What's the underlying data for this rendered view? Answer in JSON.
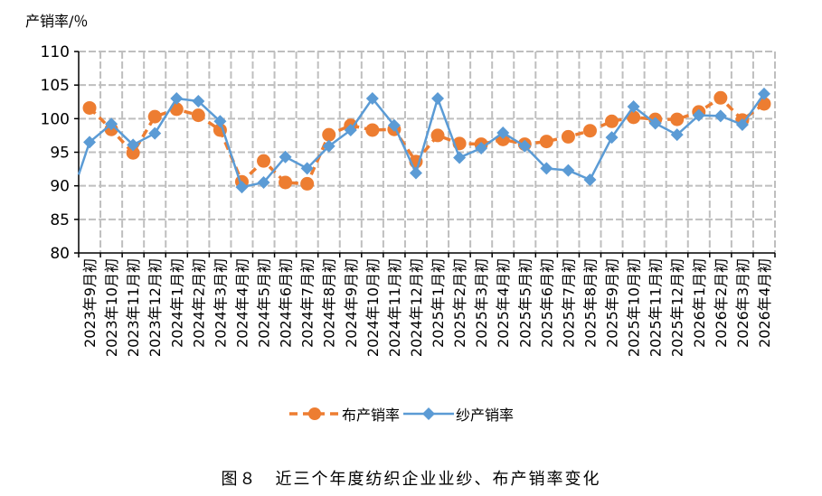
{
  "caption": "图８　近三个年度纺织企业业纱、布产销率变化",
  "chart_data": {
    "type": "line",
    "ylabel": "产销率/％",
    "ylim": [
      80,
      110
    ],
    "yticks": [
      80,
      85,
      90,
      95,
      100,
      105,
      110
    ],
    "grid": true,
    "legend_position": "bottom",
    "categories": [
      "2023年9月初",
      "2023年10月初",
      "2023年11月初",
      "2023年12月初",
      "2024年1月初",
      "2024年2月初",
      "2024年3月初",
      "2024年4月初",
      "2024年5月初",
      "2024年6月初",
      "2024年7月初",
      "2024年8月初",
      "2024年9月初",
      "2024年10月初",
      "2024年11月初",
      "2024年12月初",
      "2025年1月初",
      "2025年2月初",
      "2025年3月初",
      "2025年4月初",
      "2025年5月初",
      "2025年6月初",
      "2025年7月初",
      "2025年8月初",
      "2025年9月初",
      "2025年10月初",
      "2025年11月初",
      "2025年12月初",
      "2026年1月初",
      "2026年2月初",
      "2026年3月初",
      "2026年4月初"
    ],
    "series": [
      {
        "name": "布产销率",
        "color": "#ED7D31",
        "style": "dashed",
        "marker": "circle",
        "values": [
          101.6,
          98.4,
          94.9,
          100.3,
          101.4,
          100.5,
          98.3,
          90.6,
          93.7,
          90.5,
          90.3,
          97.6,
          99.0,
          98.3,
          98.4,
          93.6,
          97.5,
          96.3,
          96.2,
          96.9,
          96.2,
          96.6,
          97.3,
          98.2,
          99.6,
          100.2,
          99.9,
          99.9,
          101.0,
          103.1,
          99.8,
          102.2
        ]
      },
      {
        "name": "纱产销率",
        "color": "#5B9BD5",
        "style": "solid",
        "marker": "diamond",
        "values": [
          96.5,
          99.2,
          96.1,
          97.8,
          103.0,
          102.6,
          99.6,
          89.8,
          90.5,
          94.3,
          92.6,
          95.9,
          98.3,
          103.0,
          99.0,
          91.9,
          103.0,
          94.2,
          95.6,
          97.9,
          95.9,
          92.6,
          92.3,
          90.9,
          97.2,
          101.8,
          99.3,
          97.6,
          100.5,
          100.4,
          99.1,
          103.7
        ]
      }
    ]
  }
}
